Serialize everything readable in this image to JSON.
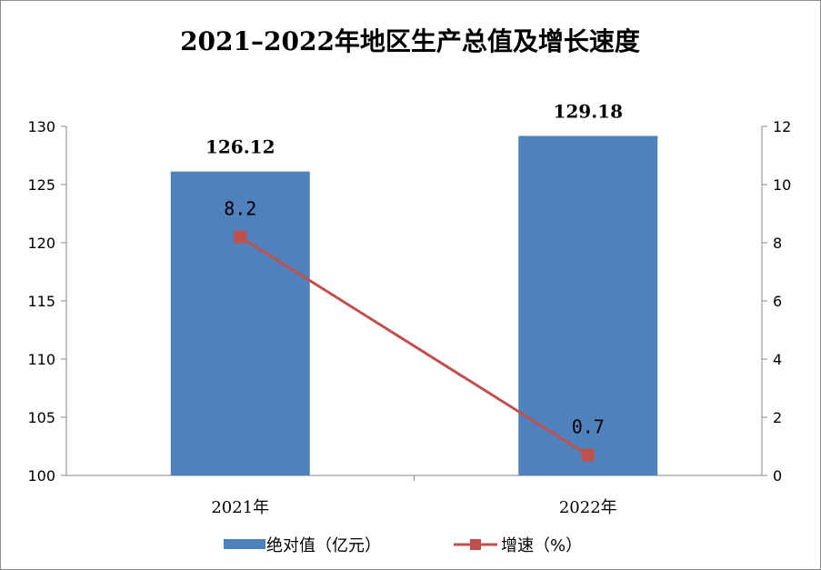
{
  "chart_data": {
    "type": "bar",
    "title": "2021–2022年地区生产总值及增长速度",
    "categories": [
      "2021年",
      "2022年"
    ],
    "series": [
      {
        "name": "绝对值（亿元）",
        "kind": "bar",
        "axis": "left",
        "values": [
          126.12,
          129.18
        ],
        "labels": [
          "126.12",
          "129.18"
        ],
        "color": "#4f81bd"
      },
      {
        "name": "增速（%）",
        "kind": "line",
        "axis": "right",
        "values": [
          8.2,
          0.7
        ],
        "labels": [
          "8.2",
          "0.7"
        ],
        "color": "#c0504d"
      }
    ],
    "y_left": {
      "min": 100,
      "max": 130,
      "ticks": [
        "100",
        "105",
        "110",
        "115",
        "120",
        "125",
        "130"
      ]
    },
    "y_right": {
      "min": 0,
      "max": 12,
      "ticks": [
        "0",
        "2",
        "4",
        "6",
        "8",
        "10",
        "12"
      ]
    },
    "grid": false,
    "legend": "bottom",
    "xlabel": "",
    "ylabel": ""
  }
}
